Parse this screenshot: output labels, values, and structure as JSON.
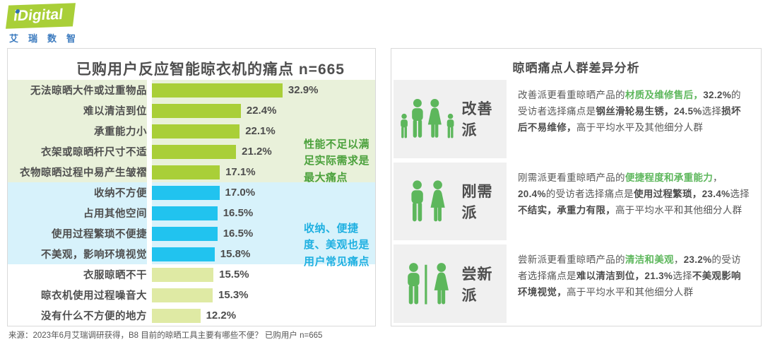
{
  "logo": {
    "brand": "iDigital",
    "subtext": "艾瑞数智",
    "brand_green": "#a9cf38",
    "brand_blue": "#3c7bbf"
  },
  "chart_data": {
    "type": "bar",
    "orientation": "horizontal",
    "title": "已购用户反应智能晾衣机的痛点  n=665",
    "sample_size": "n=665",
    "unit": "%",
    "xlim": [
      0,
      35
    ],
    "categories": [
      "无法晾晒大件或过重物品",
      "难以清洁到位",
      "承重能力小",
      "衣架或晾晒杆尺寸不适",
      "衣物晾晒过程中易产生皱褶",
      "收纳不方便",
      "占用其他空间",
      "使用过程繁琐不便捷",
      "不美观，影响环境视觉",
      "衣服晾晒不干",
      "晾衣机使用过程噪音大",
      "没有什么不方便的地方"
    ],
    "values": [
      32.9,
      22.4,
      22.1,
      21.2,
      17.1,
      17.0,
      16.5,
      16.5,
      15.8,
      15.5,
      15.3,
      12.2
    ],
    "sections": [
      {
        "name": "performance",
        "row_start": 0,
        "row_end": 4,
        "bg": "#e9f1da",
        "bar_color": "#a9cf38",
        "annotation": "性能不足以满足实际需求是最大痛点",
        "annotation_color": "#4ba13c"
      },
      {
        "name": "storage-convenience-aesthetics",
        "row_start": 5,
        "row_end": 8,
        "bg": "#d7f2fb",
        "bar_color": "#21c3ef",
        "annotation": "收纳、便捷度、美观也是用户常见痛点",
        "annotation_color": "#1fb0e1"
      },
      {
        "name": "other",
        "row_start": 9,
        "row_end": 11,
        "bg": "#ffffff",
        "bar_color": "#dfeaa4",
        "annotation": "",
        "annotation_color": ""
      }
    ]
  },
  "right_panel": {
    "title": "晾晒痛点人群差异分析",
    "accent_green": "#5db75c",
    "groups": [
      {
        "name": "改善派",
        "icon": "family-icon",
        "description": [
          {
            "t": "改善派更看重晾晒产品的",
            "s": "n"
          },
          {
            "t": "材质及维修售后，",
            "s": "g"
          },
          {
            "t": "32.2%",
            "s": "b"
          },
          {
            "t": "的受访者选择痛点是",
            "s": "n"
          },
          {
            "t": "钢丝滑轮易生锈，",
            "s": "b"
          },
          {
            "t": "24.5%",
            "s": "b"
          },
          {
            "t": "选择",
            "s": "n"
          },
          {
            "t": "损坏后不易维修，",
            "s": "b"
          },
          {
            "t": "高于平均水平及其他细分人群",
            "s": "n"
          }
        ]
      },
      {
        "name": "刚需派",
        "icon": "couple-icon",
        "description": [
          {
            "t": "刚需派更看重晾晒产品的",
            "s": "n"
          },
          {
            "t": "便捷程度和承重能力",
            "s": "g"
          },
          {
            "t": "，",
            "s": "n"
          },
          {
            "t": "20.4%",
            "s": "b"
          },
          {
            "t": "的受访者选择痛点是",
            "s": "n"
          },
          {
            "t": "使用过程繁琐，",
            "s": "b"
          },
          {
            "t": "23.4%",
            "s": "b"
          },
          {
            "t": "选择",
            "s": "n"
          },
          {
            "t": "不结实，承重力有限，",
            "s": "b"
          },
          {
            "t": "高于平均水平和其他细分人群",
            "s": "n"
          }
        ]
      },
      {
        "name": "尝新派",
        "icon": "restroom-icon",
        "description": [
          {
            "t": "尝新派更看重晾晒产品的",
            "s": "n"
          },
          {
            "t": "清洁和美观",
            "s": "g"
          },
          {
            "t": "，",
            "s": "n"
          },
          {
            "t": "23.2%",
            "s": "b"
          },
          {
            "t": "的受访者选择痛点是",
            "s": "n"
          },
          {
            "t": "难以清洁到位，",
            "s": "b"
          },
          {
            "t": "21.3%",
            "s": "b"
          },
          {
            "t": "选择",
            "s": "n"
          },
          {
            "t": "不美观影响环境视觉，",
            "s": "b"
          },
          {
            "t": "高于平均水平和其他细分人群",
            "s": "n"
          }
        ]
      }
    ]
  },
  "footer": {
    "source": "来源：2023年6月艾瑞调研获得，B8 目前的晾晒工具主要有哪些不便？ 已购用户 n=665"
  }
}
